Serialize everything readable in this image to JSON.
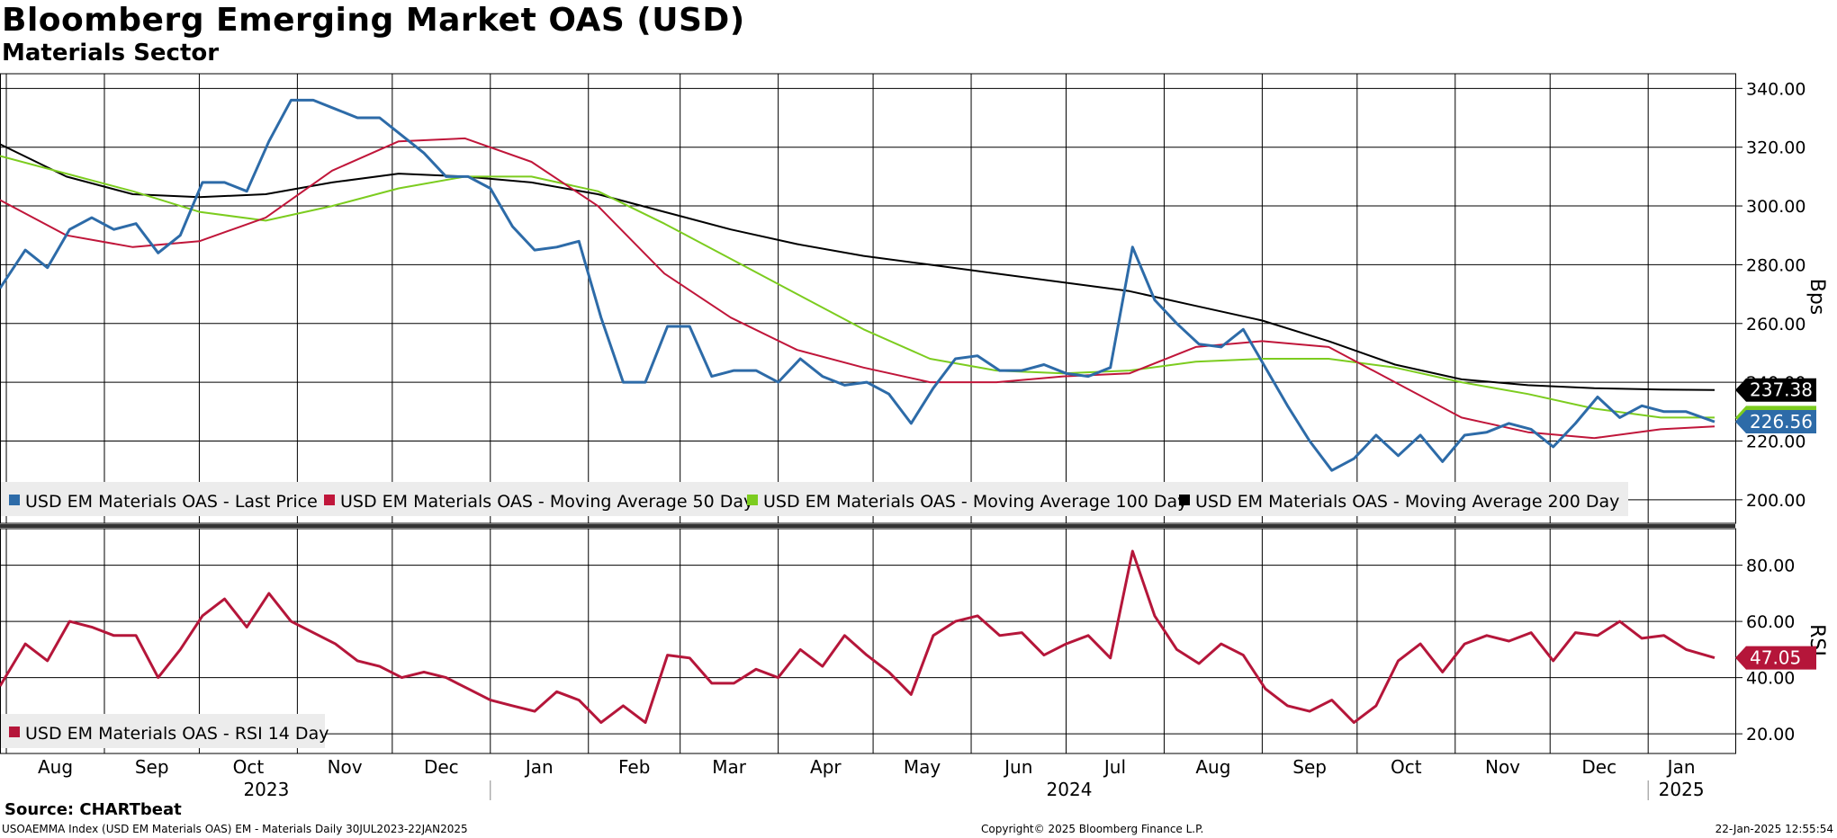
{
  "title": "Bloomberg Emerging Market OAS (USD)",
  "subtitle": "Materials Sector",
  "source": "Source: CHARTbeat",
  "footer": {
    "left": "USOAEMMA Index (USD EM Materials OAS) EM - Materials  Daily 30JUL2023-22JAN2025",
    "middle": "Copyright© 2025 Bloomberg Finance L.P.",
    "right": "22-Jan-2025 12:55:54"
  },
  "colors": {
    "last_price": "#2d6ba8",
    "ma50": "#c0163a",
    "ma100": "#7ccc1f",
    "ma200": "#000000",
    "rsi": "#b5163a"
  },
  "chart_data": [
    {
      "type": "line",
      "ylabel": "Bps",
      "ylim": [
        192,
        345
      ],
      "yticks": [
        "340.00",
        "320.00",
        "300.00",
        "280.00",
        "260.00",
        "240.00",
        "220.00",
        "200.00"
      ],
      "yticks_values": [
        340,
        320,
        300,
        280,
        260,
        240,
        220,
        200
      ],
      "x_start": "2023-07-30",
      "x_end": "2025-01-22",
      "month_labels": [
        "Aug",
        "Sep",
        "Oct",
        "Nov",
        "Dec",
        "Jan",
        "Feb",
        "Mar",
        "Apr",
        "May",
        "Jun",
        "Jul",
        "Aug",
        "Sep",
        "Oct",
        "Nov",
        "Dec",
        "Jan"
      ],
      "year_labels": [
        "2023",
        "2024",
        "2025"
      ],
      "legend_position": "bottom-left",
      "last_value_labels": [
        "237.38",
        "226.56"
      ],
      "series": [
        {
          "name": "USD EM Materials OAS - Last Price",
          "x": [
            "2023-07-30",
            "2023-08-07",
            "2023-08-14",
            "2023-08-21",
            "2023-08-28",
            "2023-09-04",
            "2023-09-11",
            "2023-09-18",
            "2023-09-25",
            "2023-10-02",
            "2023-10-09",
            "2023-10-16",
            "2023-10-23",
            "2023-10-30",
            "2023-11-06",
            "2023-11-13",
            "2023-11-20",
            "2023-11-27",
            "2023-12-04",
            "2023-12-11",
            "2023-12-18",
            "2023-12-25",
            "2024-01-01",
            "2024-01-08",
            "2024-01-15",
            "2024-01-22",
            "2024-01-29",
            "2024-02-05",
            "2024-02-12",
            "2024-02-19",
            "2024-02-26",
            "2024-03-04",
            "2024-03-11",
            "2024-03-18",
            "2024-03-25",
            "2024-04-01",
            "2024-04-08",
            "2024-04-15",
            "2024-04-22",
            "2024-04-29",
            "2024-05-06",
            "2024-05-13",
            "2024-05-20",
            "2024-05-27",
            "2024-06-03",
            "2024-06-10",
            "2024-06-17",
            "2024-06-24",
            "2024-07-01",
            "2024-07-08",
            "2024-07-15",
            "2024-07-22",
            "2024-07-29",
            "2024-08-05",
            "2024-08-12",
            "2024-08-19",
            "2024-08-26",
            "2024-09-02",
            "2024-09-09",
            "2024-09-16",
            "2024-09-23",
            "2024-09-30",
            "2024-10-07",
            "2024-10-14",
            "2024-10-21",
            "2024-10-28",
            "2024-11-04",
            "2024-11-11",
            "2024-11-18",
            "2024-11-25",
            "2024-12-02",
            "2024-12-09",
            "2024-12-16",
            "2024-12-23",
            "2024-12-30",
            "2025-01-06",
            "2025-01-13",
            "2025-01-22"
          ],
          "values": [
            272,
            285,
            279,
            292,
            296,
            292,
            294,
            284,
            290,
            308,
            308,
            305,
            322,
            336,
            336,
            333,
            330,
            330,
            324,
            318,
            310,
            310,
            306,
            293,
            285,
            286,
            288,
            262,
            240,
            240,
            259,
            259,
            242,
            244,
            244,
            240,
            248,
            242,
            239,
            240,
            236,
            226,
            238,
            248,
            249,
            244,
            244,
            246,
            243,
            242,
            245,
            286,
            268,
            260,
            253,
            252,
            258,
            245,
            232,
            220,
            210,
            214,
            222,
            215,
            222,
            213,
            222,
            223,
            226,
            224,
            218,
            226,
            235,
            228,
            232,
            230,
            230,
            226.56
          ]
        },
        {
          "name": "USD EM Materials OAS - Moving Average 50 Day",
          "x": [
            "2023-07-30",
            "2023-08-20",
            "2023-09-10",
            "2023-10-01",
            "2023-10-22",
            "2023-11-12",
            "2023-12-03",
            "2023-12-24",
            "2024-01-14",
            "2024-02-04",
            "2024-02-25",
            "2024-03-17",
            "2024-04-07",
            "2024-04-28",
            "2024-05-19",
            "2024-06-09",
            "2024-06-30",
            "2024-07-21",
            "2024-08-11",
            "2024-09-01",
            "2024-09-22",
            "2024-10-13",
            "2024-11-03",
            "2024-11-24",
            "2024-12-15",
            "2025-01-05",
            "2025-01-22"
          ],
          "values": [
            302,
            290,
            286,
            288,
            296,
            312,
            322,
            323,
            315,
            300,
            277,
            262,
            251,
            245,
            240,
            240,
            242,
            243,
            252,
            254,
            252,
            240,
            228,
            223,
            221,
            224,
            225
          ]
        },
        {
          "name": "USD EM Materials OAS - Moving Average 100 Day",
          "x": [
            "2023-07-30",
            "2023-08-20",
            "2023-09-10",
            "2023-10-01",
            "2023-10-22",
            "2023-11-12",
            "2023-12-03",
            "2023-12-24",
            "2024-01-14",
            "2024-02-04",
            "2024-02-25",
            "2024-03-17",
            "2024-04-07",
            "2024-04-28",
            "2024-05-19",
            "2024-06-09",
            "2024-06-30",
            "2024-07-21",
            "2024-08-11",
            "2024-09-01",
            "2024-09-22",
            "2024-10-13",
            "2024-11-03",
            "2024-11-24",
            "2024-12-15",
            "2025-01-05",
            "2025-01-22"
          ],
          "values": [
            317,
            311,
            305,
            298,
            295,
            300,
            306,
            310,
            310,
            305,
            294,
            282,
            270,
            258,
            248,
            244,
            243,
            244,
            247,
            248,
            248,
            245,
            240,
            236,
            231,
            228,
            228
          ]
        },
        {
          "name": "USD EM Materials OAS - Moving Average 200 Day",
          "x": [
            "2023-07-30",
            "2023-08-20",
            "2023-09-10",
            "2023-10-01",
            "2023-10-22",
            "2023-11-12",
            "2023-12-03",
            "2023-12-24",
            "2024-01-14",
            "2024-02-04",
            "2024-02-25",
            "2024-03-17",
            "2024-04-07",
            "2024-04-28",
            "2024-05-19",
            "2024-06-09",
            "2024-06-30",
            "2024-07-21",
            "2024-08-11",
            "2024-09-01",
            "2024-09-22",
            "2024-10-13",
            "2024-11-03",
            "2024-11-24",
            "2024-12-15",
            "2025-01-05",
            "2025-01-22"
          ],
          "values": [
            321,
            310,
            304,
            303,
            304,
            308,
            311,
            310,
            308,
            304,
            298,
            292,
            287,
            283,
            280,
            277,
            274,
            271,
            266,
            261,
            254,
            246,
            241,
            239,
            238,
            237.5,
            237.38
          ]
        }
      ]
    },
    {
      "type": "line",
      "ylabel": "RSI",
      "ylim": [
        13,
        93
      ],
      "yticks": [
        "80.00",
        "60.00",
        "40.00",
        "20.00"
      ],
      "yticks_values": [
        80,
        60,
        40,
        20
      ],
      "legend_position": "bottom-left",
      "last_value_labels": [
        "47.05"
      ],
      "series": [
        {
          "name": "USD EM Materials OAS - RSI 14 Day",
          "x": [
            "2023-07-30",
            "2023-08-07",
            "2023-08-14",
            "2023-08-21",
            "2023-08-28",
            "2023-09-04",
            "2023-09-11",
            "2023-09-18",
            "2023-09-25",
            "2023-10-02",
            "2023-10-09",
            "2023-10-16",
            "2023-10-23",
            "2023-10-30",
            "2023-11-06",
            "2023-11-13",
            "2023-11-20",
            "2023-11-27",
            "2023-12-04",
            "2023-12-11",
            "2023-12-18",
            "2023-12-25",
            "2024-01-01",
            "2024-01-08",
            "2024-01-15",
            "2024-01-22",
            "2024-01-29",
            "2024-02-05",
            "2024-02-12",
            "2024-02-19",
            "2024-02-26",
            "2024-03-04",
            "2024-03-11",
            "2024-03-18",
            "2024-03-25",
            "2024-04-01",
            "2024-04-08",
            "2024-04-15",
            "2024-04-22",
            "2024-04-29",
            "2024-05-06",
            "2024-05-13",
            "2024-05-20",
            "2024-05-27",
            "2024-06-03",
            "2024-06-10",
            "2024-06-17",
            "2024-06-24",
            "2024-07-01",
            "2024-07-08",
            "2024-07-15",
            "2024-07-22",
            "2024-07-29",
            "2024-08-05",
            "2024-08-12",
            "2024-08-19",
            "2024-08-26",
            "2024-09-02",
            "2024-09-09",
            "2024-09-16",
            "2024-09-23",
            "2024-09-30",
            "2024-10-07",
            "2024-10-14",
            "2024-10-21",
            "2024-10-28",
            "2024-11-04",
            "2024-11-11",
            "2024-11-18",
            "2024-11-25",
            "2024-12-02",
            "2024-12-09",
            "2024-12-16",
            "2024-12-23",
            "2024-12-30",
            "2025-01-06",
            "2025-01-13",
            "2025-01-22"
          ],
          "values": [
            37,
            52,
            46,
            60,
            58,
            55,
            55,
            40,
            50,
            62,
            68,
            58,
            70,
            60,
            56,
            52,
            46,
            44,
            40,
            42,
            40,
            36,
            32,
            30,
            28,
            35,
            32,
            24,
            30,
            24,
            48,
            47,
            38,
            38,
            43,
            40,
            50,
            44,
            55,
            48,
            42,
            34,
            55,
            60,
            62,
            55,
            56,
            48,
            52,
            55,
            47,
            85,
            62,
            50,
            45,
            52,
            48,
            36,
            30,
            28,
            32,
            24,
            30,
            46,
            52,
            42,
            52,
            55,
            53,
            56,
            46,
            56,
            55,
            60,
            54,
            55,
            50,
            47.05
          ]
        }
      ]
    }
  ]
}
